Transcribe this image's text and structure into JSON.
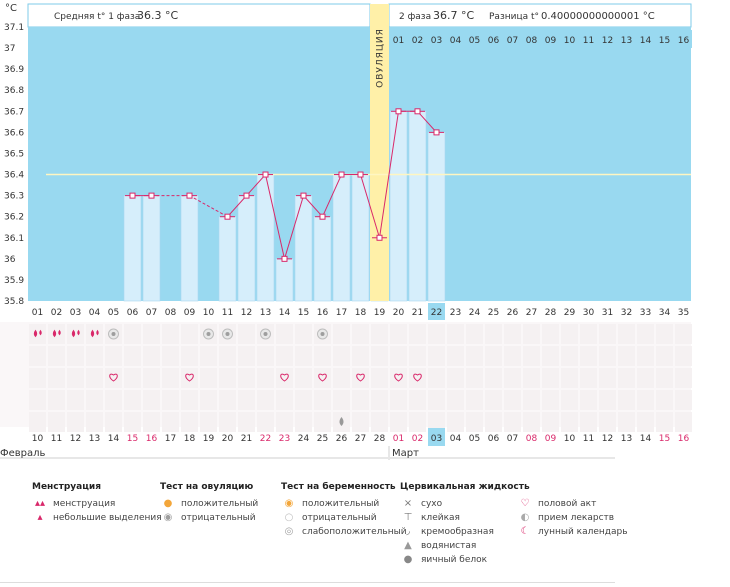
{
  "unit_label": "°C",
  "summary": {
    "phase1_label": "Средняя t° 1 фаза",
    "phase1_value": "36.3 °C",
    "phase2_label": "2 фаза",
    "phase2_value": "36.7 °C",
    "diff_label": "Разница t°",
    "diff_value": "0.40000000000001 °C"
  },
  "ovulation_label": "ОВУЛЯЦИЯ",
  "top_days": [
    "01",
    "02",
    "03",
    "04",
    "05",
    "06",
    "07",
    "08",
    "09",
    "10",
    "11",
    "12",
    "13",
    "14",
    "15",
    "16"
  ],
  "cycle_days": [
    "01",
    "02",
    "03",
    "04",
    "05",
    "06",
    "07",
    "08",
    "09",
    "10",
    "11",
    "12",
    "13",
    "14",
    "15",
    "16",
    "17",
    "18",
    "19",
    "20",
    "21",
    "22",
    "23",
    "24",
    "25",
    "26",
    "27",
    "28",
    "29",
    "30",
    "31",
    "32",
    "33",
    "34",
    "35"
  ],
  "current_cycle_day": "22",
  "dates": [
    "10",
    "11",
    "12",
    "13",
    "14",
    "15",
    "16",
    "17",
    "18",
    "19",
    "20",
    "21",
    "22",
    "23",
    "24",
    "25",
    "26",
    "27",
    "28",
    "01",
    "02",
    "03",
    "04",
    "05",
    "06",
    "07",
    "08",
    "09",
    "10",
    "11",
    "12",
    "13",
    "14",
    "15",
    "16"
  ],
  "weekend_date_indices": [
    5,
    6,
    12,
    13,
    19,
    20,
    26,
    27,
    33,
    34
  ],
  "current_date_index": 21,
  "months": [
    {
      "label": "Февраль"
    },
    {
      "label": "Март"
    }
  ],
  "chart_data": {
    "type": "bar",
    "ylabel": "°C",
    "ylim": [
      35.8,
      37.1
    ],
    "yticks": [
      35.8,
      35.9,
      36,
      36.1,
      36.2,
      36.3,
      36.4,
      36.5,
      36.6,
      36.7,
      36.8,
      36.9,
      37,
      37.1
    ],
    "yticklabels": [
      "35.8",
      "35.9",
      "36",
      "36.1",
      "36.2",
      "36.3",
      "36.4",
      "36.5",
      "36.6",
      "36.7",
      "36.8",
      "36.9",
      "37",
      "37.1"
    ],
    "coverline": 36.4,
    "ovulation_day": 19,
    "x": [
      6,
      7,
      9,
      11,
      12,
      13,
      14,
      15,
      16,
      17,
      18,
      19,
      20,
      21,
      22
    ],
    "temps": [
      36.3,
      36.3,
      36.3,
      36.2,
      36.3,
      36.4,
      36.0,
      36.3,
      36.2,
      36.4,
      36.4,
      36.1,
      36.7,
      36.7,
      36.6
    ],
    "dashed_segments": [
      [
        8,
        9
      ],
      [
        10,
        11
      ]
    ]
  },
  "symbol_rows": {
    "menstruation_days": [
      1,
      2,
      3,
      4
    ],
    "menstruation_types": [
      "full",
      "full",
      "full",
      "light"
    ],
    "ovulation_test_negative_days": [
      5,
      10,
      11,
      13,
      16
    ],
    "intercourse_days": [
      5,
      9,
      14,
      16,
      18,
      20,
      21
    ],
    "fluid_watery_days": [
      17
    ]
  },
  "legend": {
    "groups": [
      {
        "title": "Менструация",
        "items": [
          {
            "icon": "blood-drops-icon",
            "label": "менструация"
          },
          {
            "icon": "blood-drop-icon",
            "label": "небольшие выделения"
          }
        ]
      },
      {
        "title": "Тест на овуляцию",
        "items": [
          {
            "icon": "ovulation-positive-icon",
            "label": "положительный"
          },
          {
            "icon": "ovulation-negative-icon",
            "label": "отрицательный"
          }
        ]
      },
      {
        "title": "Тест на беременность",
        "items": [
          {
            "icon": "pregnancy-positive-icon",
            "label": "положительный"
          },
          {
            "icon": "pregnancy-negative-icon",
            "label": "отрицательный"
          },
          {
            "icon": "pregnancy-weak-icon",
            "label": "слабоположительный"
          }
        ]
      },
      {
        "title": "Цервикальная жидкость",
        "items": [
          {
            "icon": "dry-icon",
            "label": "сухо"
          },
          {
            "icon": "sticky-icon",
            "label": "клейкая"
          },
          {
            "icon": "creamy-icon",
            "label": "кремообразная"
          },
          {
            "icon": "watery-icon",
            "label": "водянистая"
          },
          {
            "icon": "egg-white-icon",
            "label": "яичный белок"
          }
        ]
      },
      {
        "title": "",
        "items": [
          {
            "icon": "heart-icon",
            "label": "половой акт"
          },
          {
            "icon": "pill-icon",
            "label": "прием лекарств"
          },
          {
            "icon": "moon-icon",
            "label": "лунный календарь"
          }
        ]
      }
    ]
  },
  "colors": {
    "plot_bg": "#99D9F0",
    "bar_fill": "#D6EEFB",
    "bar_stroke": "#A9D7F0",
    "ovulation_band": "#FFF0A8",
    "coverline": "#FFF6C2",
    "series_line": "#D9286A",
    "marker_fill": "#FFFFFF",
    "weekend_text": "#D9286A",
    "current_day_bg": "#99D9F0",
    "header_border": "#7FCBEA",
    "grid_bg": "#FAF7F8",
    "grid_cell_bg": "#F5F1F2"
  }
}
